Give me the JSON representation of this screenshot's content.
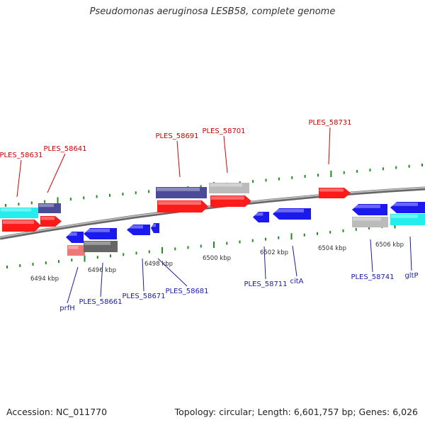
{
  "title": "Pseudomonas aeruginosa LESB58, complete genome",
  "footer": {
    "accession": "Accession: NC_011770",
    "topology": "Topology: circular; Length: 6,601,757 bp; Genes: 6,026"
  },
  "colors": {
    "backbone": "#888888",
    "tick_green": "#228b22",
    "label_red": "#cc0000",
    "label_blue": "#1a1aaa",
    "gene_red": "#ff1a1a",
    "gene_blue": "#1a1aee",
    "gene_cyan": "#22eeee",
    "gene_slate": "#4b4b99",
    "gene_grey": "#bbbbbb",
    "gene_darkgrey": "#666666",
    "gene_pink": "#ee7777"
  },
  "scale_labels": [
    "6494 kbp",
    "6496 kbp",
    "6498 kbp",
    "6500 kbp",
    "6502 kbp",
    "6504 kbp",
    "6506 kbp"
  ],
  "top_labels": [
    "PLES_58631",
    "PLES_58641",
    "PLES_58691",
    "PLES_58701",
    "PLES_58731"
  ],
  "bottom_labels": [
    "prfH",
    "PLES_58661",
    "PLES_58671",
    "PLES_58681",
    "PLES_58711",
    "citA",
    "PLES_58741",
    "gltP"
  ],
  "genes": [
    {
      "color": "gene_cyan",
      "dir": "plain"
    },
    {
      "color": "gene_slate",
      "dir": "plain"
    },
    {
      "color": "gene_red",
      "dir": "right"
    },
    {
      "color": "gene_red",
      "dir": "right"
    },
    {
      "color": "gene_slate",
      "dir": "plain"
    },
    {
      "color": "gene_grey",
      "dir": "plain"
    },
    {
      "color": "gene_red",
      "dir": "right"
    },
    {
      "color": "gene_red",
      "dir": "right"
    },
    {
      "color": "gene_red",
      "dir": "right"
    },
    {
      "color": "gene_blue",
      "dir": "left"
    },
    {
      "color": "gene_blue",
      "dir": "left"
    },
    {
      "color": "gene_blue",
      "dir": "left"
    },
    {
      "color": "gene_blue",
      "dir": "left"
    },
    {
      "color": "gene_pink",
      "dir": "plain"
    },
    {
      "color": "gene_darkgrey",
      "dir": "plain"
    },
    {
      "color": "gene_blue",
      "dir": "left"
    },
    {
      "color": "gene_blue",
      "dir": "left"
    },
    {
      "color": "gene_blue",
      "dir": "left"
    },
    {
      "color": "gene_blue",
      "dir": "left"
    },
    {
      "color": "gene_grey",
      "dir": "plain"
    },
    {
      "color": "gene_cyan",
      "dir": "plain"
    }
  ]
}
